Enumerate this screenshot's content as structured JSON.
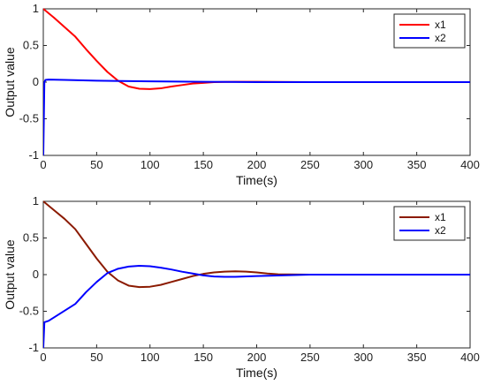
{
  "chart_data": [
    {
      "type": "line",
      "xlabel": "Time(s)",
      "ylabel": "Output value",
      "xlim": [
        0,
        400
      ],
      "ylim": [
        -1,
        1
      ],
      "xticks": [
        "0",
        "50",
        "100",
        "150",
        "200",
        "250",
        "300",
        "350",
        "400"
      ],
      "yticks": [
        "-1",
        "-0.5",
        "0",
        "0.5",
        "1"
      ],
      "grid": false,
      "legend_position": "top-right",
      "series": [
        {
          "name": "x1",
          "color": "#ff0000",
          "x": [
            0,
            10,
            20,
            30,
            40,
            50,
            60,
            70,
            80,
            90,
            100,
            110,
            120,
            130,
            140,
            150,
            160,
            180,
            200,
            250,
            300,
            350,
            400
          ],
          "y": [
            1.0,
            0.88,
            0.75,
            0.62,
            0.45,
            0.29,
            0.14,
            0.02,
            -0.06,
            -0.09,
            -0.095,
            -0.085,
            -0.06,
            -0.04,
            -0.02,
            -0.01,
            0.0,
            0.005,
            0.005,
            0.0,
            0.0,
            0.0,
            0.0
          ]
        },
        {
          "name": "x2",
          "color": "#0000ff",
          "x": [
            0,
            1,
            2,
            5,
            20,
            50,
            100,
            150,
            200,
            250,
            300,
            350,
            400
          ],
          "y": [
            -1.0,
            0.0,
            0.03,
            0.035,
            0.03,
            0.02,
            0.01,
            0.005,
            0.0,
            0.0,
            0.0,
            0.0,
            0.0
          ]
        }
      ]
    },
    {
      "type": "line",
      "xlabel": "Time(s)",
      "ylabel": "Output value",
      "xlim": [
        0,
        400
      ],
      "ylim": [
        -1,
        1
      ],
      "xticks": [
        "0",
        "50",
        "100",
        "150",
        "200",
        "250",
        "300",
        "350",
        "400"
      ],
      "yticks": [
        "-1",
        "-0.5",
        "0",
        "0.5",
        "1"
      ],
      "grid": false,
      "legend_position": "top-right",
      "series": [
        {
          "name": "x1",
          "color": "#8b1a00",
          "x": [
            0,
            10,
            20,
            30,
            40,
            50,
            60,
            70,
            80,
            90,
            100,
            110,
            120,
            130,
            140,
            150,
            160,
            170,
            180,
            190,
            200,
            210,
            220,
            250,
            300,
            350,
            400
          ],
          "y": [
            1.0,
            0.88,
            0.76,
            0.62,
            0.42,
            0.22,
            0.04,
            -0.08,
            -0.15,
            -0.17,
            -0.165,
            -0.14,
            -0.1,
            -0.06,
            -0.02,
            0.01,
            0.03,
            0.04,
            0.045,
            0.04,
            0.03,
            0.015,
            0.005,
            0.0,
            0.0,
            0.0,
            0.0
          ]
        },
        {
          "name": "x2",
          "color": "#0000ff",
          "x": [
            0,
            1,
            5,
            30,
            40,
            50,
            60,
            70,
            80,
            90,
            100,
            110,
            120,
            130,
            140,
            150,
            160,
            170,
            180,
            200,
            250,
            300,
            350,
            400
          ],
          "y": [
            -1.0,
            -0.65,
            -0.63,
            -0.4,
            -0.24,
            -0.1,
            0.02,
            0.08,
            0.11,
            0.12,
            0.115,
            0.095,
            0.07,
            0.04,
            0.015,
            -0.01,
            -0.025,
            -0.03,
            -0.03,
            -0.02,
            0.0,
            0.0,
            0.0,
            0.0
          ]
        }
      ]
    }
  ]
}
